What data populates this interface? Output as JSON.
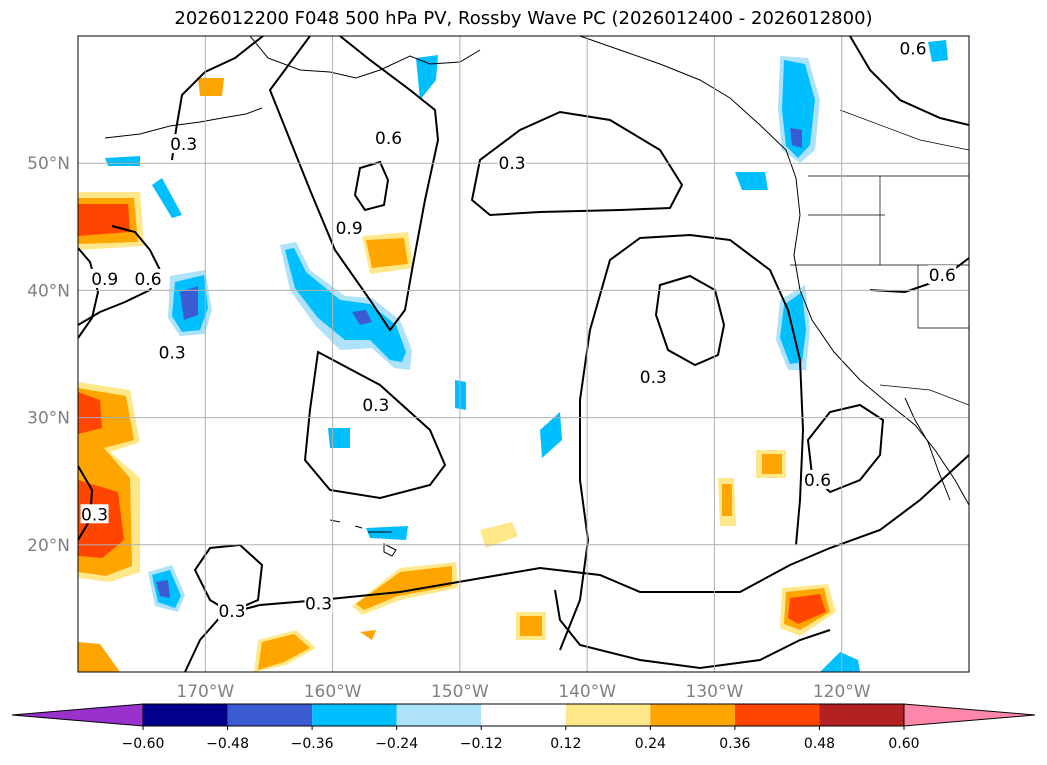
{
  "chart_data": {
    "type": "heatmap",
    "title": "2026012200 F048 500 hPa PV, Rossby Wave PC (2026012400 - 2026012800)",
    "map": {
      "lon_range": [
        -180,
        -110
      ],
      "lat_range": [
        10,
        60
      ],
      "gridlines": true,
      "lon_ticks": [
        {
          "value": -170,
          "label": "170°W"
        },
        {
          "value": -160,
          "label": "160°W"
        },
        {
          "value": -150,
          "label": "150°W"
        },
        {
          "value": -140,
          "label": "140°W"
        },
        {
          "value": -130,
          "label": "130°W"
        },
        {
          "value": -120,
          "label": "120°W"
        }
      ],
      "lat_ticks": [
        {
          "value": 20,
          "label": "20°N"
        },
        {
          "value": 30,
          "label": "30°N"
        },
        {
          "value": 40,
          "label": "40°N"
        },
        {
          "value": 50,
          "label": "50°N"
        }
      ]
    },
    "colorbar": {
      "orientation": "horizontal",
      "extend": "both",
      "boundaries": [
        -0.72,
        -0.6,
        -0.48,
        -0.36,
        -0.24,
        -0.12,
        0.12,
        0.24,
        0.36,
        0.48,
        0.6,
        0.72
      ],
      "colors": [
        "#9932cc",
        "#00008b",
        "#3a5bd1",
        "#00bfff",
        "#ade2fa",
        "#ffffff",
        "#ffe88a",
        "#ffa500",
        "#ff4500",
        "#b22222",
        "#ff88aa"
      ],
      "tick_values": [
        -0.6,
        -0.48,
        -0.36,
        -0.24,
        -0.12,
        0.12,
        0.24,
        0.36,
        0.48,
        0.6
      ],
      "tick_labels": [
        "−0.60",
        "−0.48",
        "−0.36",
        "−0.24",
        "−0.12",
        "0.12",
        "0.24",
        "0.36",
        "0.48",
        "0.60"
      ]
    },
    "contour_labels": [
      {
        "text": "0.3",
        "lon": -171.7,
        "lat": 51.5
      },
      {
        "text": "0.6",
        "lon": -155.6,
        "lat": 52.0
      },
      {
        "text": "0.3",
        "lon": -145.9,
        "lat": 50.0
      },
      {
        "text": "0.9",
        "lon": -158.7,
        "lat": 44.9
      },
      {
        "text": "0.9",
        "lon": -177.9,
        "lat": 40.9
      },
      {
        "text": "0.6",
        "lon": -174.5,
        "lat": 40.9
      },
      {
        "text": "0.3",
        "lon": -172.6,
        "lat": 35.1
      },
      {
        "text": "0.3",
        "lon": -156.6,
        "lat": 31.0
      },
      {
        "text": "0.3",
        "lon": -134.8,
        "lat": 33.2
      },
      {
        "text": "0.6",
        "lon": -112.1,
        "lat": 41.2
      },
      {
        "text": "0.6",
        "lon": -114.4,
        "lat": 59.0
      },
      {
        "text": "0.3",
        "lon": -178.7,
        "lat": 22.4
      },
      {
        "text": "0.3",
        "lon": -167.9,
        "lat": 14.8
      },
      {
        "text": "0.3",
        "lon": -161.1,
        "lat": 15.4
      },
      {
        "text": "0.6",
        "lon": -121.9,
        "lat": 25.1
      }
    ]
  }
}
